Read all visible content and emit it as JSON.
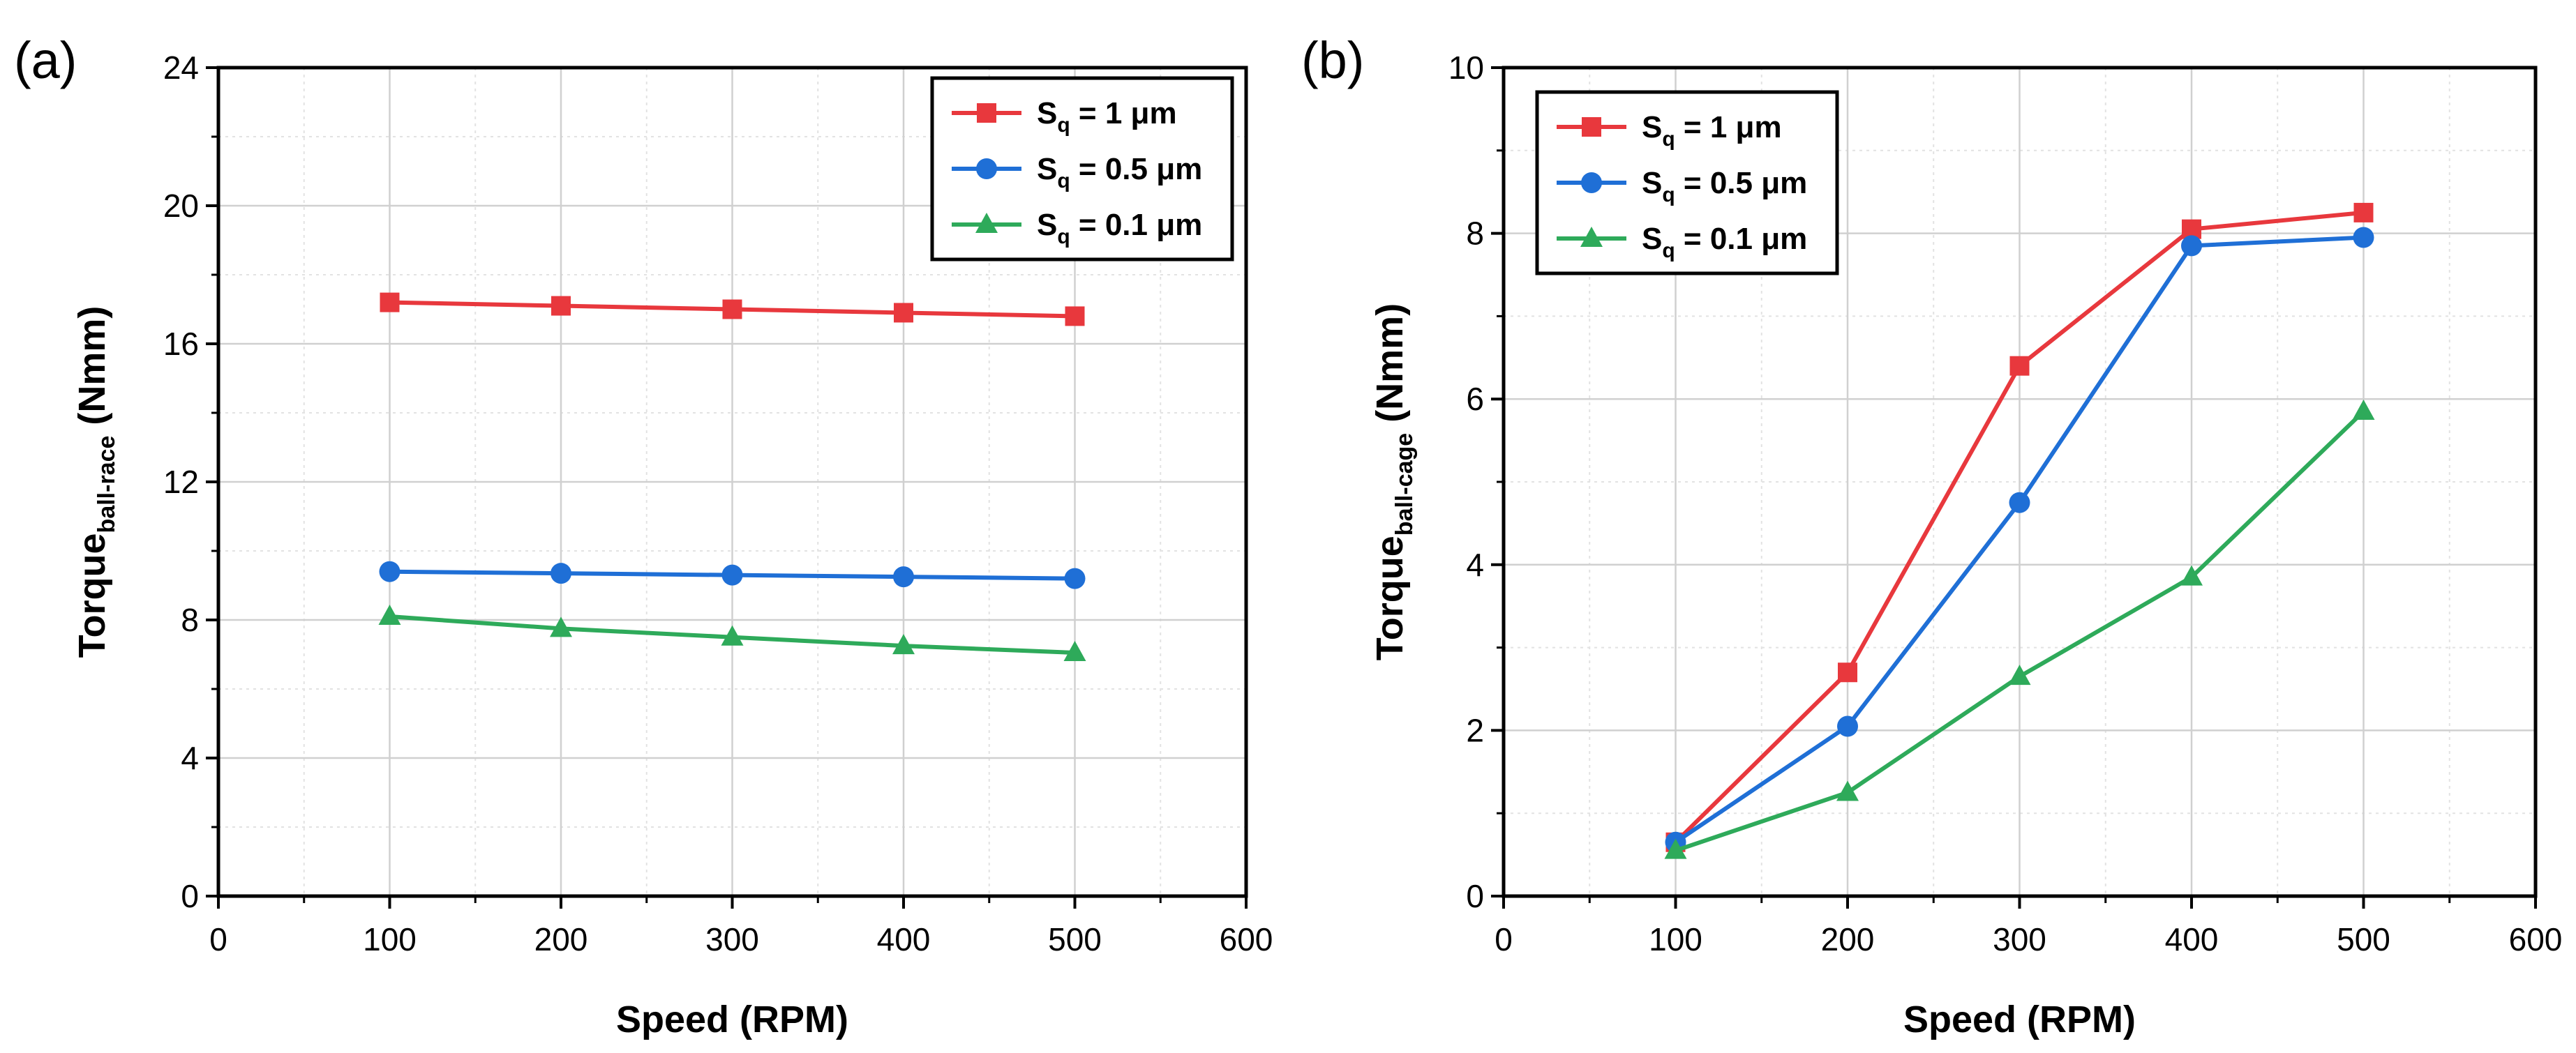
{
  "chart_data": [
    {
      "type": "line",
      "panel_label": "(a)",
      "xlabel": "Speed (RPM)",
      "ylabel": {
        "main": "Torque",
        "subscript": "ball-race",
        "unit": " (Nmm)"
      },
      "xlim": [
        0,
        600
      ],
      "ylim": [
        0,
        24
      ],
      "xticks": [
        0,
        100,
        200,
        300,
        400,
        500,
        600
      ],
      "yticks": [
        0,
        4,
        8,
        12,
        16,
        20,
        24
      ],
      "grid": true,
      "legend_position": "top-right",
      "x": [
        100,
        200,
        300,
        400,
        500
      ],
      "series": [
        {
          "name": "Sq = 1 μm",
          "label_main": "S",
          "label_sub": "q",
          "label_rest": " = 1 μm",
          "color": "#e8383d",
          "marker": "square",
          "values": [
            17.2,
            17.1,
            17.0,
            16.9,
            16.8
          ]
        },
        {
          "name": "Sq = 0.5 μm",
          "label_main": "S",
          "label_sub": "q",
          "label_rest": " = 0.5 μm",
          "color": "#1f6fd6",
          "marker": "circle",
          "values": [
            9.4,
            9.35,
            9.3,
            9.25,
            9.2
          ]
        },
        {
          "name": "Sq = 0.1 μm",
          "label_main": "S",
          "label_sub": "q",
          "label_rest": " = 0.1 μm",
          "color": "#2eaa5a",
          "marker": "triangle",
          "values": [
            8.1,
            7.75,
            7.5,
            7.25,
            7.05
          ]
        }
      ]
    },
    {
      "type": "line",
      "panel_label": "(b)",
      "xlabel": "Speed (RPM)",
      "ylabel": {
        "main": "Torque",
        "subscript": "ball-cage",
        "unit": " (Nmm)"
      },
      "xlim": [
        0,
        600
      ],
      "ylim": [
        0,
        10
      ],
      "xticks": [
        0,
        100,
        200,
        300,
        400,
        500,
        600
      ],
      "yticks": [
        0,
        2,
        4,
        6,
        8,
        10
      ],
      "grid": true,
      "legend_position": "top-left",
      "x": [
        100,
        200,
        300,
        400,
        500
      ],
      "series": [
        {
          "name": "Sq = 1 μm",
          "label_main": "S",
          "label_sub": "q",
          "label_rest": " = 1 μm",
          "color": "#e8383d",
          "marker": "square",
          "values": [
            0.65,
            2.7,
            6.4,
            8.05,
            8.25
          ]
        },
        {
          "name": "Sq = 0.5 μm",
          "label_main": "S",
          "label_sub": "q",
          "label_rest": " = 0.5 μm",
          "color": "#1f6fd6",
          "marker": "circle",
          "values": [
            0.65,
            2.05,
            4.75,
            7.85,
            7.95
          ]
        },
        {
          "name": "Sq = 0.1 μm",
          "label_main": "S",
          "label_sub": "q",
          "label_rest": " = 0.1 μm",
          "color": "#2eaa5a",
          "marker": "triangle",
          "values": [
            0.55,
            1.25,
            2.65,
            3.85,
            5.85
          ]
        }
      ]
    }
  ]
}
